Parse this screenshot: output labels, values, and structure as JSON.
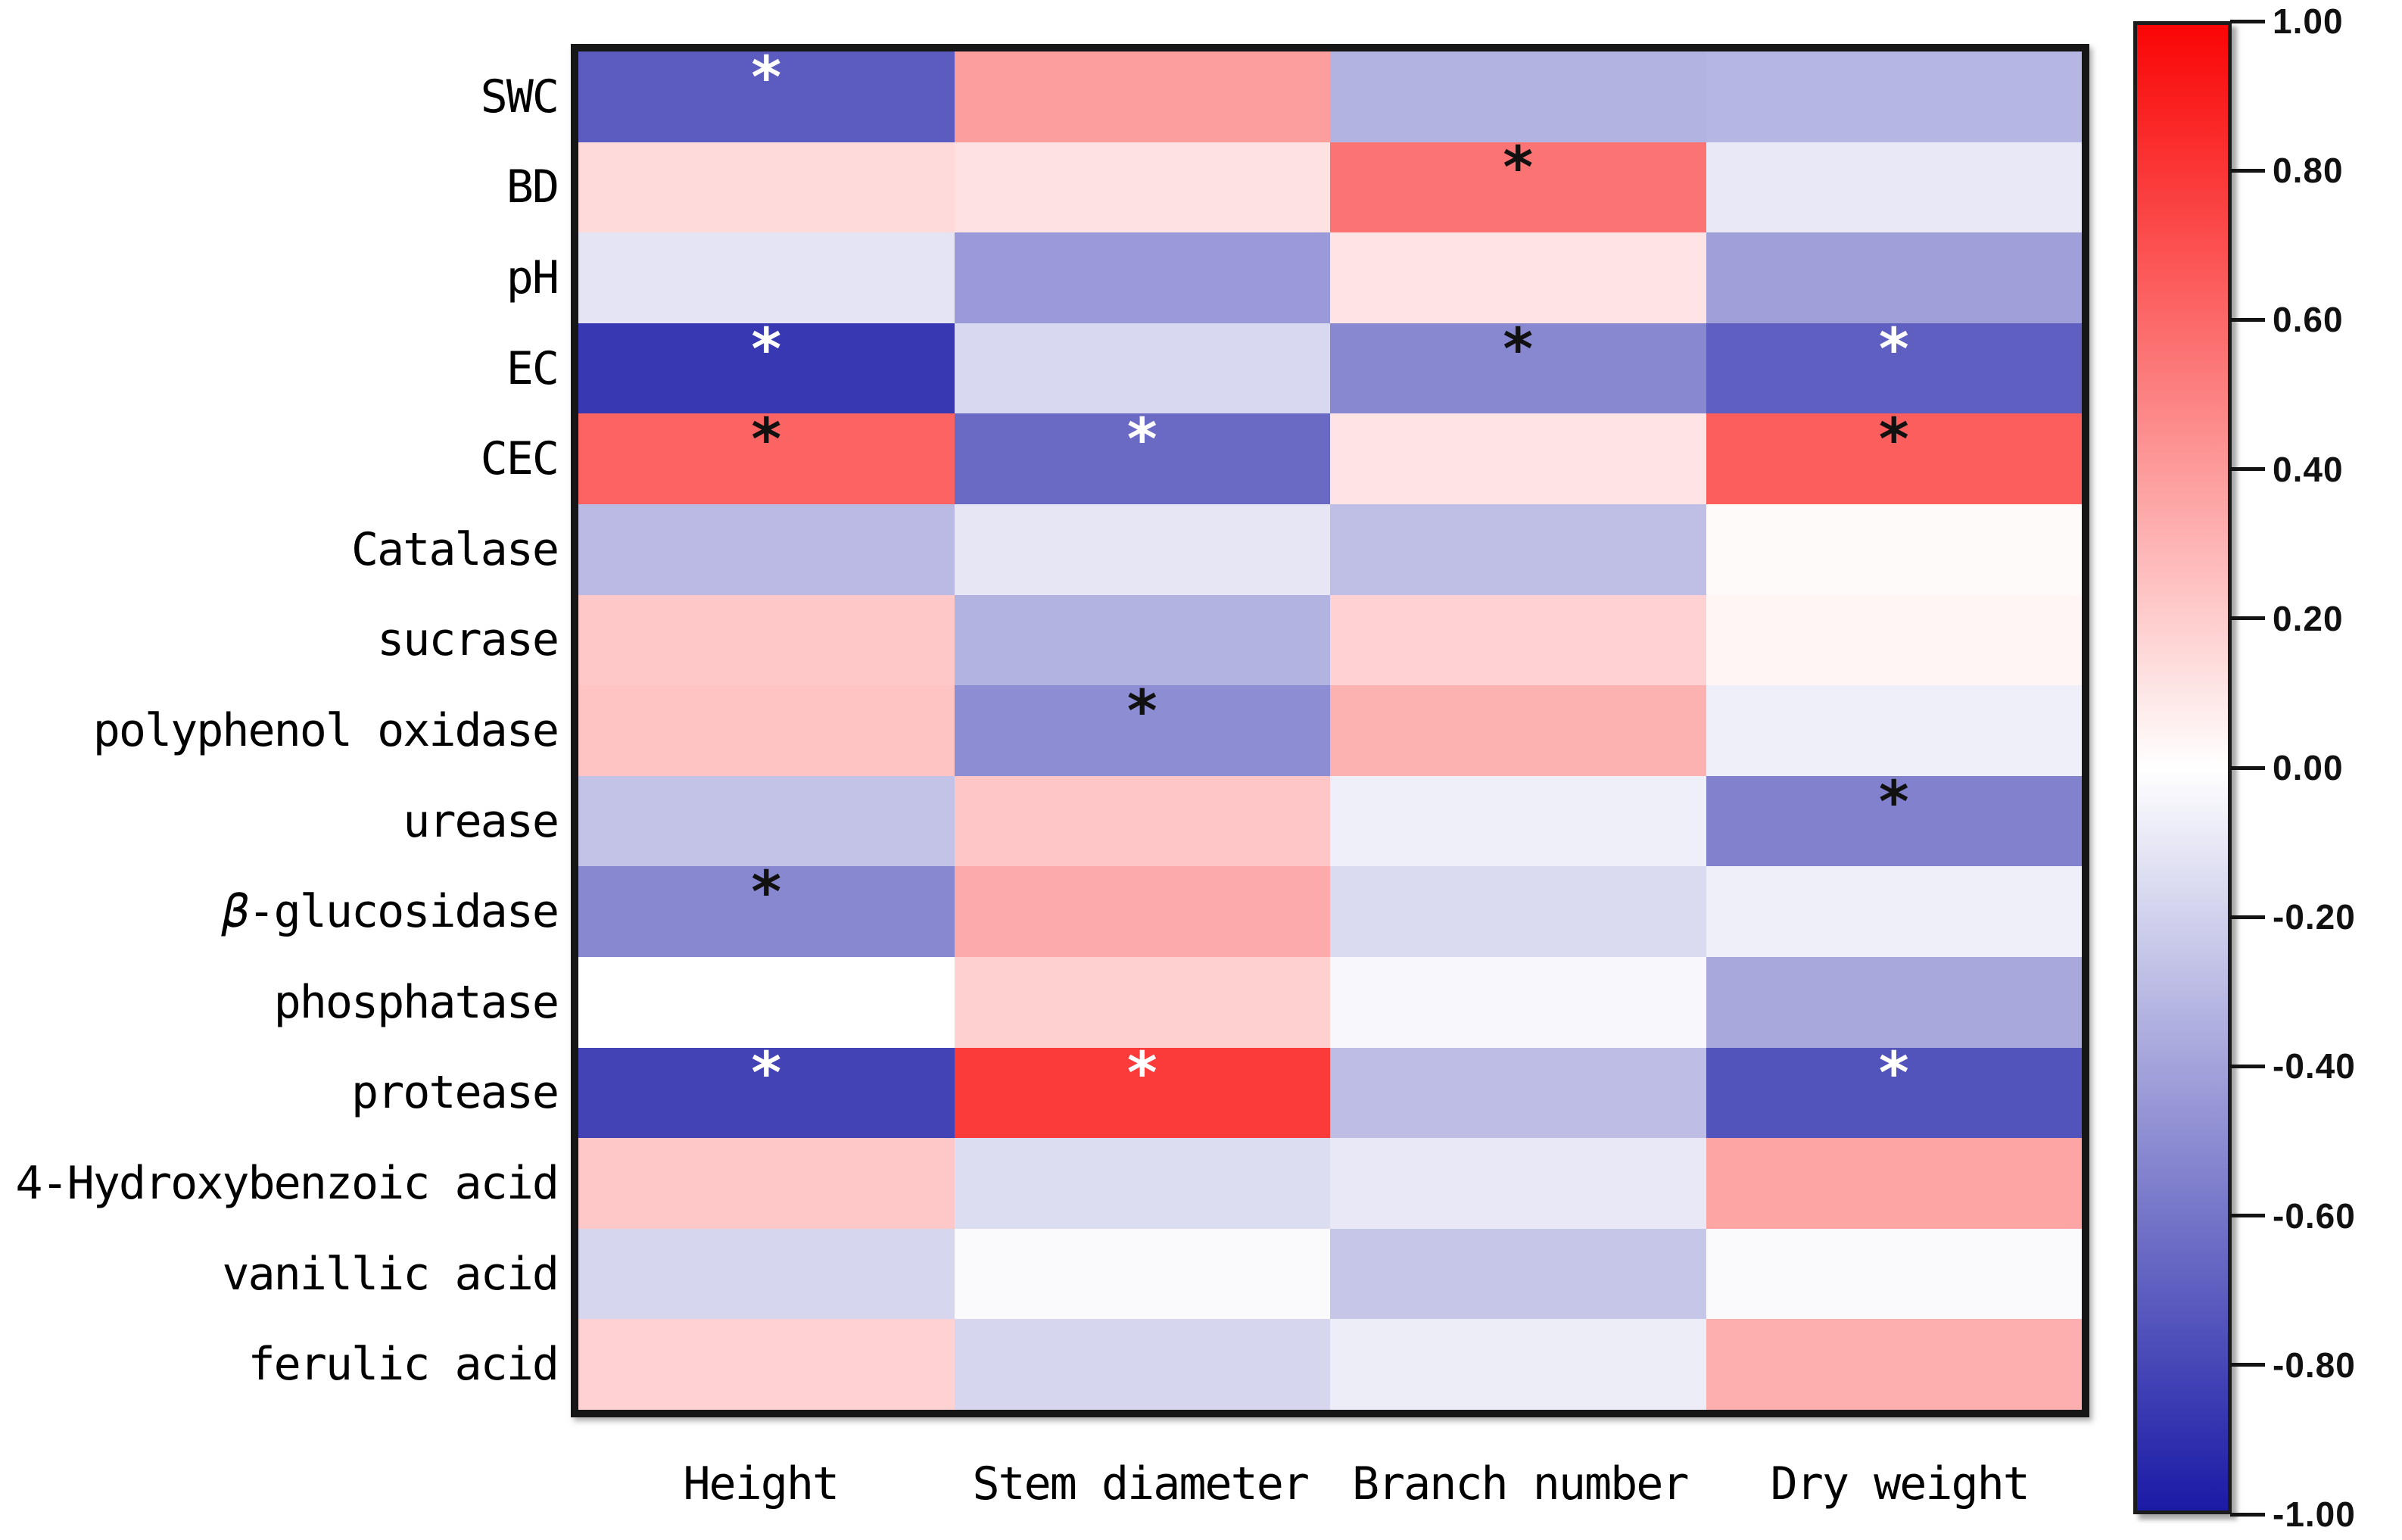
{
  "page": {
    "background": "#ffffff"
  },
  "chart_data": {
    "type": "heatmap",
    "x_categories": [
      "Height",
      "Stem diameter",
      "Branch number",
      "Dry weight"
    ],
    "y_categories": [
      "SWC",
      "BD",
      "pH",
      "EC",
      "CEC",
      "Catalase",
      "sucrase",
      "polyphenol oxidase",
      "urease",
      "β-glucosidase",
      "phosphatase",
      "protease",
      "4-Hydroxybenzoic acid",
      "vanillic acid",
      "ferulic acid"
    ],
    "values": [
      [
        -0.71,
        0.39,
        -0.33,
        -0.32
      ],
      [
        0.15,
        0.12,
        0.56,
        -0.1
      ],
      [
        -0.12,
        -0.44,
        0.11,
        -0.42
      ],
      [
        -0.87,
        -0.17,
        -0.52,
        -0.7
      ],
      [
        0.62,
        -0.65,
        0.11,
        0.65
      ],
      [
        -0.3,
        -0.11,
        -0.28,
        0.02
      ],
      [
        0.22,
        -0.33,
        0.18,
        0.04
      ],
      [
        0.24,
        -0.5,
        0.31,
        -0.07
      ],
      [
        -0.26,
        0.23,
        -0.07,
        -0.55
      ],
      [
        -0.52,
        0.34,
        -0.16,
        -0.07
      ],
      [
        0.0,
        0.19,
        -0.03,
        -0.38
      ],
      [
        -0.82,
        0.79,
        -0.29,
        -0.75
      ],
      [
        0.22,
        -0.15,
        -0.1,
        0.36
      ],
      [
        -0.18,
        -0.02,
        -0.25,
        -0.02
      ],
      [
        0.18,
        -0.18,
        -0.08,
        0.32
      ]
    ],
    "significance_stars": [
      [
        "white",
        "",
        "",
        ""
      ],
      [
        "",
        "",
        "black",
        ""
      ],
      [
        "",
        "",
        "",
        ""
      ],
      [
        "white",
        "",
        "black",
        "white"
      ],
      [
        "black",
        "white",
        "",
        "black"
      ],
      [
        "",
        "",
        "",
        ""
      ],
      [
        "",
        "",
        "",
        ""
      ],
      [
        "",
        "black",
        "",
        ""
      ],
      [
        "",
        "",
        "",
        "black"
      ],
      [
        "black",
        "",
        "",
        ""
      ],
      [
        "",
        "",
        "",
        ""
      ],
      [
        "white",
        "white",
        "",
        "white"
      ],
      [
        "",
        "",
        "",
        ""
      ],
      [
        "",
        "",
        "",
        ""
      ],
      [
        "",
        "",
        "",
        ""
      ]
    ],
    "star_symbol": "*",
    "star_colors": {
      "white": "#ffffff",
      "black": "#111111"
    },
    "grid": "off",
    "colorbar": {
      "position": "right",
      "min": -1.0,
      "max": 1.0,
      "tick_labels": [
        "1.00",
        "0.80",
        "0.60",
        "0.40",
        "0.20",
        "0.00",
        "-0.20",
        "-0.40",
        "-0.60",
        "-0.80",
        "-1.00"
      ],
      "color_max": "#fa0505",
      "color_mid": "#ffffff",
      "color_min": "#1a1aa6"
    }
  }
}
